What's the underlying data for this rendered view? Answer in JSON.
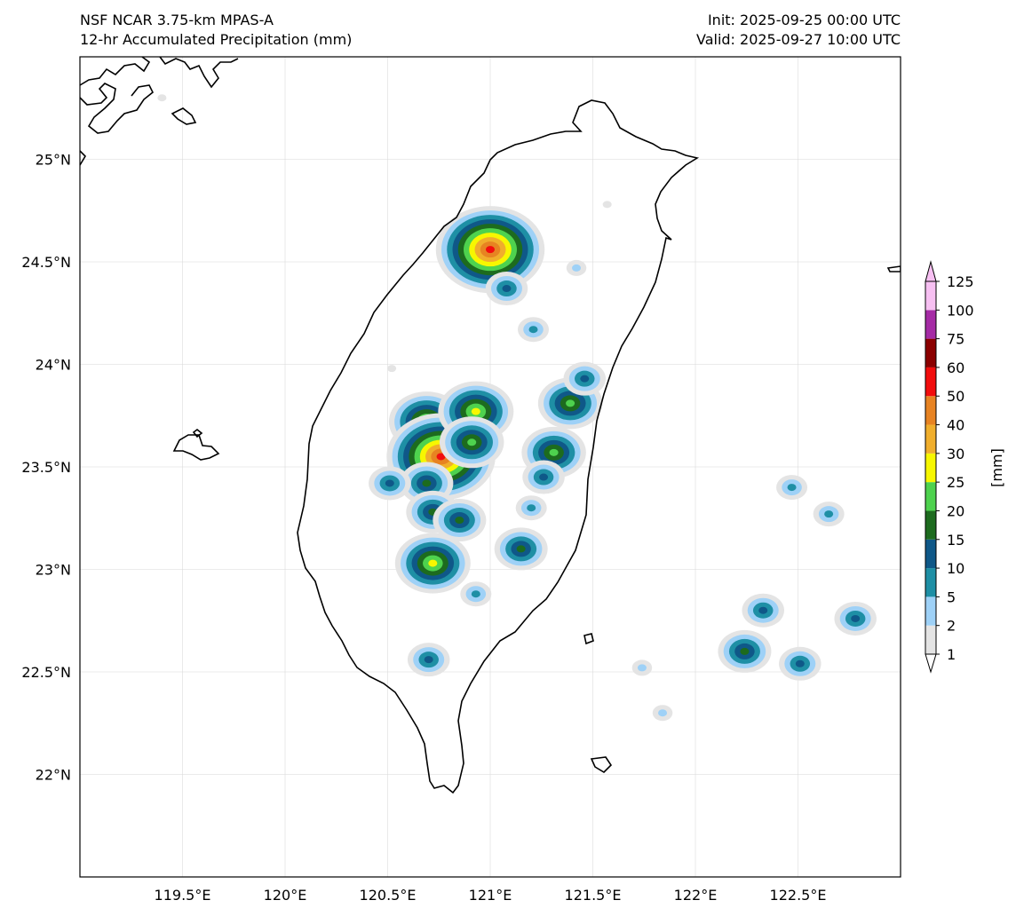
{
  "header": {
    "model": "NSF NCAR 3.75-km MPAS-A",
    "field": "12-hr Accumulated Precipitation (mm)",
    "init": "Init: 2025-09-25 00:00 UTC",
    "valid": "Valid: 2025-09-27 10:00 UTC"
  },
  "axes": {
    "lon_ticks": [
      {
        "value": 119.5,
        "label": "119.5°E"
      },
      {
        "value": 120.0,
        "label": "120°E"
      },
      {
        "value": 120.5,
        "label": "120.5°E"
      },
      {
        "value": 121.0,
        "label": "121°E"
      },
      {
        "value": 121.5,
        "label": "121.5°E"
      },
      {
        "value": 122.0,
        "label": "122°E"
      },
      {
        "value": 122.5,
        "label": "122.5°E"
      }
    ],
    "lat_ticks": [
      {
        "value": 25.0,
        "label": "25°N"
      },
      {
        "value": 24.5,
        "label": "24.5°N"
      },
      {
        "value": 24.0,
        "label": "24°N"
      },
      {
        "value": 23.5,
        "label": "23.5°N"
      },
      {
        "value": 23.0,
        "label": "23°N"
      },
      {
        "value": 22.5,
        "label": "22.5°N"
      },
      {
        "value": 22.0,
        "label": "22°N"
      }
    ],
    "lon_range": [
      119.0,
      123.0
    ],
    "lat_range": [
      21.5,
      25.5
    ],
    "grid": true
  },
  "colorbar": {
    "unit_label": "[mm]",
    "levels": [
      "1",
      "2",
      "5",
      "10",
      "15",
      "20",
      "25",
      "30",
      "40",
      "50",
      "60",
      "75",
      "100",
      "125"
    ],
    "colors": [
      "#e4e4e4",
      "#9ed1f7",
      "#1e8fa5",
      "#0f5888",
      "#1d6b1e",
      "#4ed24e",
      "#f7f700",
      "#f0ae2c",
      "#e78322",
      "#f20d0d",
      "#8b0000",
      "#a52ba5",
      "#f7c0f2"
    ],
    "extend": "both"
  },
  "precip_cells": [
    {
      "lon": 121.0,
      "lat": 24.56,
      "peak": "50"
    },
    {
      "lon": 121.08,
      "lat": 24.37,
      "peak": "10"
    },
    {
      "lon": 121.21,
      "lat": 24.17,
      "peak": "5"
    },
    {
      "lon": 120.69,
      "lat": 23.72,
      "peak": "25"
    },
    {
      "lon": 120.76,
      "lat": 23.55,
      "peak": "50"
    },
    {
      "lon": 120.93,
      "lat": 23.77,
      "peak": "25"
    },
    {
      "lon": 120.91,
      "lat": 23.62,
      "peak": "20"
    },
    {
      "lon": 120.69,
      "lat": 23.42,
      "peak": "15"
    },
    {
      "lon": 120.51,
      "lat": 23.42,
      "peak": "10"
    },
    {
      "lon": 120.72,
      "lat": 23.28,
      "peak": "15"
    },
    {
      "lon": 120.85,
      "lat": 23.24,
      "peak": "15"
    },
    {
      "lon": 120.72,
      "lat": 23.03,
      "peak": "25"
    },
    {
      "lon": 121.15,
      "lat": 23.1,
      "peak": "15"
    },
    {
      "lon": 121.31,
      "lat": 23.57,
      "peak": "20"
    },
    {
      "lon": 121.39,
      "lat": 23.81,
      "peak": "20"
    },
    {
      "lon": 121.46,
      "lat": 23.93,
      "peak": "10"
    },
    {
      "lon": 121.26,
      "lat": 23.45,
      "peak": "10"
    },
    {
      "lon": 121.2,
      "lat": 23.3,
      "peak": "5"
    },
    {
      "lon": 120.93,
      "lat": 22.88,
      "peak": "5"
    },
    {
      "lon": 120.7,
      "lat": 22.56,
      "peak": "10"
    },
    {
      "lon": 122.24,
      "lat": 22.6,
      "peak": "15"
    },
    {
      "lon": 122.51,
      "lat": 22.54,
      "peak": "10"
    },
    {
      "lon": 122.33,
      "lat": 22.8,
      "peak": "10"
    },
    {
      "lon": 122.78,
      "lat": 22.76,
      "peak": "10"
    },
    {
      "lon": 122.47,
      "lat": 23.4,
      "peak": "5"
    },
    {
      "lon": 122.65,
      "lat": 23.27,
      "peak": "5"
    },
    {
      "lon": 121.84,
      "lat": 22.3,
      "peak": "2"
    },
    {
      "lon": 121.74,
      "lat": 22.52,
      "peak": "2"
    },
    {
      "lon": 121.42,
      "lat": 24.47,
      "peak": "2"
    },
    {
      "lon": 121.57,
      "lat": 24.78,
      "peak": "1"
    },
    {
      "lon": 120.52,
      "lat": 23.98,
      "peak": "1"
    },
    {
      "lon": 119.4,
      "lat": 25.3,
      "peak": "1"
    }
  ]
}
